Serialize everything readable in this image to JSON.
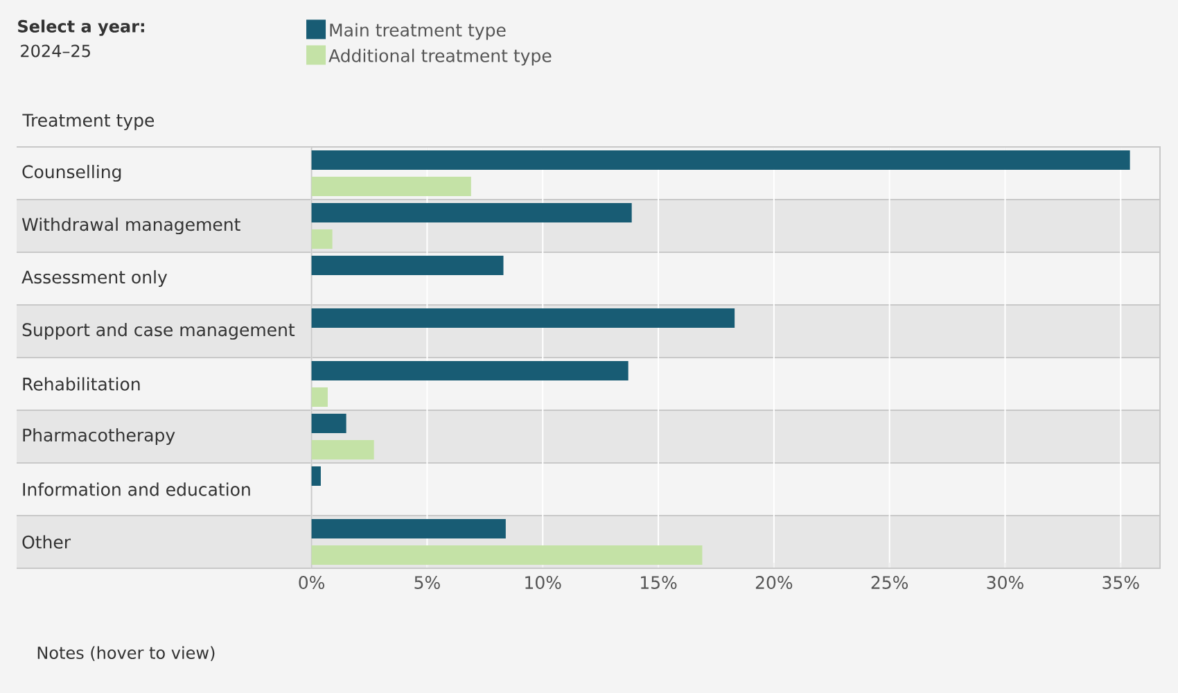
{
  "chart_data": {
    "type": "bar",
    "orientation": "horizontal",
    "title": "Select a year:",
    "subtitle": "2024–25",
    "ylabel": "Treatment type",
    "categories": [
      "Counselling",
      "Withdrawal management",
      "Assessment only",
      "Support and case management",
      "Rehabilitation",
      "Pharmacotherapy",
      "Information and education",
      "Other"
    ],
    "series": [
      {
        "name": "Main treatment type",
        "color": "#185c74",
        "values": [
          35.4,
          13.85,
          8.3,
          18.3,
          13.7,
          1.5,
          0.4,
          8.4
        ]
      },
      {
        "name": "Additional treatment type",
        "color": "#c4e2a6",
        "values": [
          6.9,
          0.9,
          null,
          null,
          0.7,
          2.7,
          null,
          16.9
        ]
      }
    ],
    "xlim": [
      0,
      36.7
    ],
    "xticks": [
      {
        "value": 0,
        "label": "0%"
      },
      {
        "value": 5,
        "label": "5%"
      },
      {
        "value": 10,
        "label": "10%"
      },
      {
        "value": 15,
        "label": "15%"
      },
      {
        "value": 20,
        "label": "20%"
      },
      {
        "value": 25,
        "label": "25%"
      },
      {
        "value": 30,
        "label": "30%"
      },
      {
        "value": 35,
        "label": "35%"
      }
    ],
    "grid": "x",
    "legend": "top",
    "annotations": [
      "Notes (hover to view)"
    ]
  }
}
